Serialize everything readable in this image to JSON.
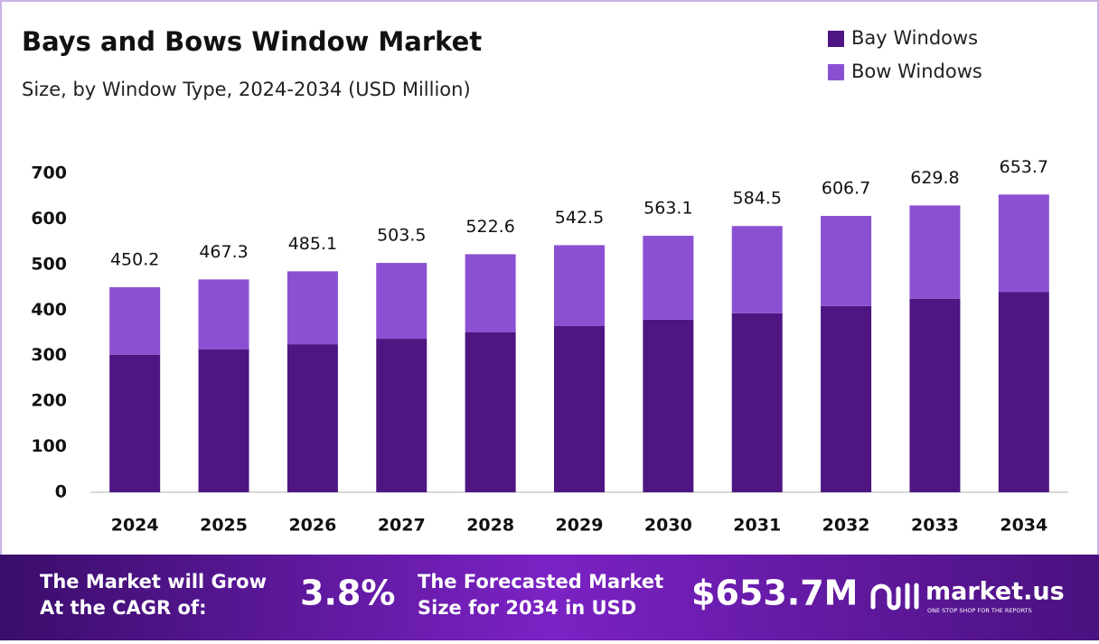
{
  "chart_data": {
    "type": "stacked_bar",
    "title": "Bays and Bows Window Market",
    "subtitle": "Size, by Window Type, 2024-2034 (USD Million)",
    "categories": [
      "2024",
      "2025",
      "2026",
      "2027",
      "2028",
      "2029",
      "2030",
      "2031",
      "2032",
      "2033",
      "2034"
    ],
    "series": [
      {
        "name": "Bay Windows",
        "color": "#4e1583",
        "values": [
          302,
          314,
          325,
          337,
          351,
          365,
          379,
          393,
          409,
          425,
          440
        ]
      },
      {
        "name": "Bow Windows",
        "color": "#8b50d2",
        "values": [
          148.2,
          153.3,
          160.1,
          166.5,
          171.6,
          177.5,
          184.1,
          191.5,
          197.7,
          204.8,
          213.7
        ]
      }
    ],
    "totals": [
      450.2,
      467.3,
      485.1,
      503.5,
      522.6,
      542.5,
      563.1,
      584.5,
      606.7,
      629.8,
      653.7
    ],
    "ylim": [
      0,
      700
    ],
    "yticks": [
      0,
      100,
      200,
      300,
      400,
      500,
      600,
      700
    ],
    "legend": "top-right"
  },
  "banner": {
    "cagr_text": [
      "The Market will Grow",
      "At the CAGR of:"
    ],
    "cagr": "3.8%",
    "forecast_text": [
      "The Forecasted Market",
      "Size for 2034 in USD"
    ],
    "forecast": "$653.7M",
    "brand": "market.us",
    "tagline": "ONE STOP SHOP FOR THE REPORTS"
  }
}
